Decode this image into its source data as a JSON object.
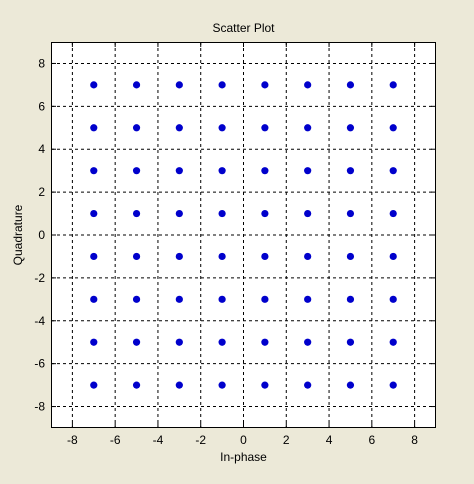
{
  "chart_data": {
    "type": "scatter",
    "title": "Scatter Plot",
    "xlabel": "In-phase",
    "ylabel": "Quadrature",
    "xlim": [
      -9,
      9
    ],
    "ylim": [
      -9,
      9
    ],
    "xticks": [
      -8,
      -6,
      -4,
      -2,
      0,
      2,
      4,
      6,
      8
    ],
    "yticks": [
      -8,
      -6,
      -4,
      -2,
      0,
      2,
      4,
      6,
      8
    ],
    "grid": true,
    "series": [
      {
        "color": "#0000cc",
        "points": [
          [
            -7,
            7
          ],
          [
            -5,
            7
          ],
          [
            -3,
            7
          ],
          [
            -1,
            7
          ],
          [
            1,
            7
          ],
          [
            3,
            7
          ],
          [
            5,
            7
          ],
          [
            7,
            7
          ],
          [
            -7,
            5
          ],
          [
            -5,
            5
          ],
          [
            -3,
            5
          ],
          [
            -1,
            5
          ],
          [
            1,
            5
          ],
          [
            3,
            5
          ],
          [
            5,
            5
          ],
          [
            7,
            5
          ],
          [
            -7,
            3
          ],
          [
            -5,
            3
          ],
          [
            -3,
            3
          ],
          [
            -1,
            3
          ],
          [
            1,
            3
          ],
          [
            3,
            3
          ],
          [
            5,
            3
          ],
          [
            7,
            3
          ],
          [
            -7,
            1
          ],
          [
            -5,
            1
          ],
          [
            -3,
            1
          ],
          [
            -1,
            1
          ],
          [
            1,
            1
          ],
          [
            3,
            1
          ],
          [
            5,
            1
          ],
          [
            7,
            1
          ],
          [
            -7,
            -1
          ],
          [
            -5,
            -1
          ],
          [
            -3,
            -1
          ],
          [
            -1,
            -1
          ],
          [
            1,
            -1
          ],
          [
            3,
            -1
          ],
          [
            5,
            -1
          ],
          [
            7,
            -1
          ],
          [
            -7,
            -3
          ],
          [
            -5,
            -3
          ],
          [
            -3,
            -3
          ],
          [
            -1,
            -3
          ],
          [
            1,
            -3
          ],
          [
            3,
            -3
          ],
          [
            5,
            -3
          ],
          [
            7,
            -3
          ],
          [
            -7,
            -5
          ],
          [
            -5,
            -5
          ],
          [
            -3,
            -5
          ],
          [
            -1,
            -5
          ],
          [
            1,
            -5
          ],
          [
            3,
            -5
          ],
          [
            5,
            -5
          ],
          [
            7,
            -5
          ],
          [
            -7,
            -7
          ],
          [
            -5,
            -7
          ],
          [
            -3,
            -7
          ],
          [
            -1,
            -7
          ],
          [
            1,
            -7
          ],
          [
            3,
            -7
          ],
          [
            5,
            -7
          ],
          [
            7,
            -7
          ]
        ]
      }
    ],
    "colors": {
      "background": "#ece9d8",
      "axes_background": "#ffffff",
      "marker": "#0000cc",
      "grid": "#000000"
    }
  }
}
